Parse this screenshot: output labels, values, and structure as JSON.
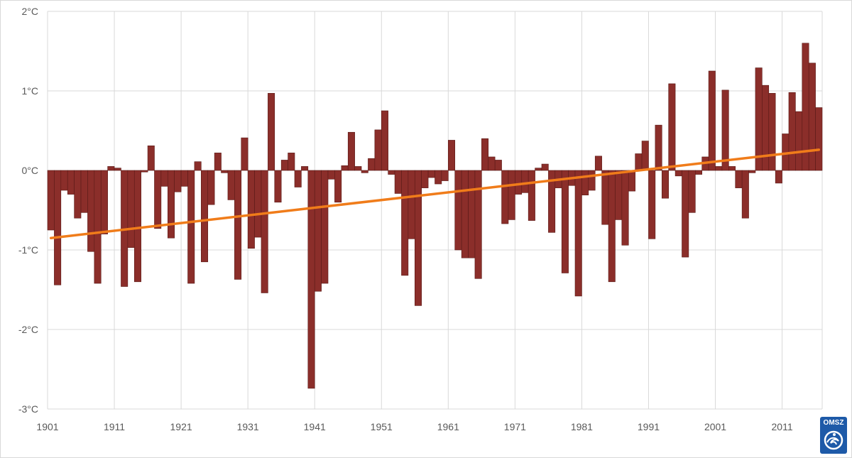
{
  "chart_data": {
    "type": "bar",
    "title": "",
    "xlabel": "",
    "ylabel": "",
    "unit": "°C",
    "x_start": 1901,
    "x_end": 2016,
    "ylim": [
      -3,
      2
    ],
    "yticks": [
      2,
      1,
      0,
      -1,
      -2,
      -3
    ],
    "ytick_labels": [
      "2°C",
      "1°C",
      "0°C",
      "-1°C",
      "-2°C",
      "-3°C"
    ],
    "xtick_labels": [
      "1901",
      "1911",
      "1921",
      "1931",
      "1941",
      "1951",
      "1961",
      "1971",
      "1981",
      "1991",
      "2001",
      "2011"
    ],
    "grid": true,
    "bar_color": "#8b2e2a",
    "bar_edge_color": "#5a1a17",
    "trend_color": "#f07c1a",
    "trend": {
      "x_start": 1901,
      "y_start": -0.85,
      "x_end": 2016,
      "y_end": 0.26
    },
    "categories": [
      1901,
      1902,
      1903,
      1904,
      1905,
      1906,
      1907,
      1908,
      1909,
      1910,
      1911,
      1912,
      1913,
      1914,
      1915,
      1916,
      1917,
      1918,
      1919,
      1920,
      1921,
      1922,
      1923,
      1924,
      1925,
      1926,
      1927,
      1928,
      1929,
      1930,
      1931,
      1932,
      1933,
      1934,
      1935,
      1936,
      1937,
      1938,
      1939,
      1940,
      1941,
      1942,
      1943,
      1944,
      1945,
      1946,
      1947,
      1948,
      1949,
      1950,
      1951,
      1952,
      1953,
      1954,
      1955,
      1956,
      1957,
      1958,
      1959,
      1960,
      1961,
      1962,
      1963,
      1964,
      1965,
      1966,
      1967,
      1968,
      1969,
      1970,
      1971,
      1972,
      1973,
      1974,
      1975,
      1976,
      1977,
      1978,
      1979,
      1980,
      1981,
      1982,
      1983,
      1984,
      1985,
      1986,
      1987,
      1988,
      1989,
      1990,
      1991,
      1992,
      1993,
      1994,
      1995,
      1996,
      1997,
      1998,
      1999,
      2000,
      2001,
      2002,
      2003,
      2004,
      2005,
      2006,
      2007,
      2008,
      2009,
      2010,
      2011,
      2012,
      2013,
      2014,
      2015,
      2016
    ],
    "values": [
      -0.75,
      -1.44,
      -0.25,
      -0.3,
      -0.6,
      -0.53,
      -1.02,
      -1.42,
      -0.8,
      0.05,
      0.03,
      -1.46,
      -0.97,
      -1.4,
      -0.02,
      0.31,
      -0.73,
      -0.2,
      -0.85,
      -0.27,
      -0.2,
      -1.42,
      0.11,
      -1.15,
      -0.43,
      0.22,
      -0.03,
      -0.37,
      -1.37,
      0.41,
      -0.98,
      -0.84,
      -1.54,
      0.97,
      -0.4,
      0.13,
      0.22,
      -0.21,
      0.05,
      -2.74,
      -1.52,
      -1.42,
      -0.11,
      -0.4,
      0.06,
      0.48,
      0.05,
      -0.03,
      0.15,
      0.51,
      0.75,
      -0.05,
      -0.29,
      -1.32,
      -0.86,
      -1.7,
      -0.22,
      -0.09,
      -0.17,
      -0.13,
      0.38,
      -1.0,
      -1.1,
      -1.1,
      -1.36,
      0.4,
      0.17,
      0.13,
      -0.67,
      -0.62,
      -0.3,
      -0.28,
      -0.63,
      0.03,
      0.08,
      -0.78,
      -0.22,
      -1.29,
      -0.19,
      -1.58,
      -0.31,
      -0.25,
      0.18,
      -0.68,
      -1.4,
      -0.62,
      -0.94,
      -0.26,
      0.21,
      0.37,
      -0.86,
      0.57,
      -0.35,
      1.09,
      -0.07,
      -1.09,
      -0.53,
      -0.05,
      0.17,
      1.25,
      0.05,
      1.01,
      0.05,
      -0.22,
      -0.6,
      -0.03,
      1.29,
      1.07,
      0.97,
      -0.16,
      0.46,
      0.98,
      0.74,
      1.6,
      1.35,
      0.79
    ]
  },
  "logo": {
    "text": "OMSZ",
    "color": "#1e5aa8"
  }
}
